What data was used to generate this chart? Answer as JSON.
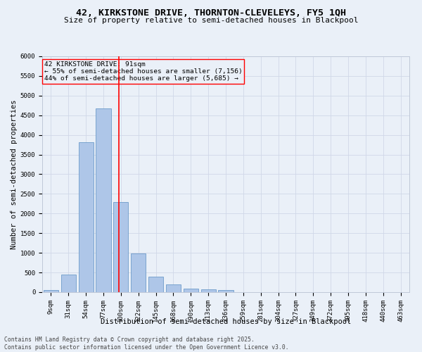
{
  "title": "42, KIRKSTONE DRIVE, THORNTON-CLEVELEYS, FY5 1QH",
  "subtitle": "Size of property relative to semi-detached houses in Blackpool",
  "xlabel": "Distribution of semi-detached houses by size in Blackpool",
  "ylabel": "Number of semi-detached properties",
  "footer": "Contains HM Land Registry data © Crown copyright and database right 2025.\nContains public sector information licensed under the Open Government Licence v3.0.",
  "categories": [
    "9sqm",
    "31sqm",
    "54sqm",
    "77sqm",
    "100sqm",
    "122sqm",
    "145sqm",
    "168sqm",
    "190sqm",
    "213sqm",
    "236sqm",
    "259sqm",
    "281sqm",
    "304sqm",
    "327sqm",
    "349sqm",
    "372sqm",
    "395sqm",
    "418sqm",
    "440sqm",
    "463sqm"
  ],
  "values": [
    50,
    440,
    3820,
    4670,
    2290,
    990,
    400,
    200,
    90,
    70,
    60,
    0,
    0,
    0,
    0,
    0,
    0,
    0,
    0,
    0,
    0
  ],
  "bar_color": "#aec6e8",
  "bar_edge_color": "#5a8fc2",
  "vline_x_index": 3.88,
  "vline_color": "red",
  "annotation_box_color": "red",
  "ylim": [
    0,
    6000
  ],
  "yticks": [
    0,
    500,
    1000,
    1500,
    2000,
    2500,
    3000,
    3500,
    4000,
    4500,
    5000,
    5500,
    6000
  ],
  "grid_color": "#d0d8e8",
  "bg_color": "#eaf0f8",
  "title_fontsize": 9.5,
  "subtitle_fontsize": 8.0,
  "axis_label_fontsize": 7.5,
  "tick_fontsize": 6.5,
  "annotation_fontsize": 6.8,
  "footer_fontsize": 5.8
}
